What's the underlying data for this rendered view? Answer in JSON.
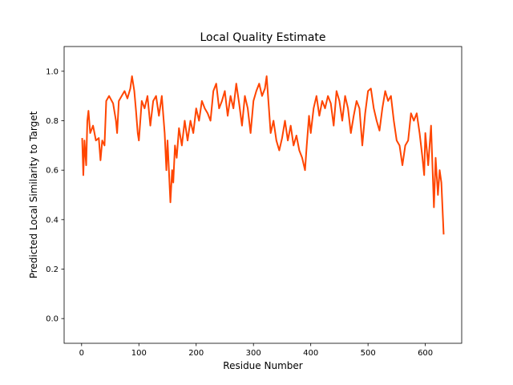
{
  "chart_data": {
    "type": "line",
    "title": "Local Quality Estimate",
    "x_label": "Residue Number",
    "y_label": "Predicted Local Similarity to Target",
    "color": "#ff4500",
    "xlim": [
      -30.5,
      663.5
    ],
    "ylim": [
      -0.1,
      1.1
    ],
    "xticks": [
      0,
      100,
      200,
      300,
      400,
      500,
      600
    ],
    "yticks": [
      {
        "value": 0,
        "label": "0.0"
      },
      0.2,
      0.4,
      0.6,
      0.8,
      {
        "value": 1,
        "label": "1.0"
      }
    ],
    "grid": false,
    "x": [
      1,
      3,
      5,
      8,
      10,
      12,
      15,
      20,
      25,
      30,
      33,
      36,
      40,
      43,
      48,
      55,
      60,
      62,
      65,
      70,
      75,
      80,
      85,
      88,
      92,
      95,
      98,
      100,
      105,
      110,
      115,
      120,
      125,
      130,
      135,
      140,
      145,
      148,
      150,
      153,
      155,
      158,
      160,
      163,
      166,
      170,
      175,
      180,
      185,
      190,
      195,
      200,
      205,
      210,
      215,
      220,
      225,
      230,
      235,
      240,
      245,
      250,
      255,
      260,
      265,
      270,
      275,
      280,
      285,
      290,
      295,
      300,
      305,
      310,
      315,
      320,
      323,
      327,
      330,
      335,
      340,
      345,
      350,
      355,
      360,
      365,
      370,
      375,
      380,
      385,
      390,
      393,
      397,
      400,
      405,
      410,
      415,
      420,
      425,
      430,
      435,
      440,
      445,
      450,
      455,
      460,
      465,
      470,
      475,
      480,
      485,
      490,
      495,
      500,
      505,
      510,
      515,
      520,
      525,
      530,
      535,
      540,
      545,
      550,
      555,
      560,
      565,
      570,
      575,
      580,
      585,
      590,
      595,
      598,
      600,
      605,
      610,
      615,
      618,
      622,
      625,
      628,
      632
    ],
    "values": [
      0.73,
      0.58,
      0.72,
      0.62,
      0.8,
      0.84,
      0.75,
      0.78,
      0.72,
      0.73,
      0.64,
      0.72,
      0.7,
      0.88,
      0.9,
      0.87,
      0.8,
      0.75,
      0.88,
      0.9,
      0.92,
      0.89,
      0.93,
      0.98,
      0.92,
      0.84,
      0.75,
      0.72,
      0.88,
      0.85,
      0.9,
      0.78,
      0.88,
      0.9,
      0.82,
      0.9,
      0.75,
      0.6,
      0.72,
      0.57,
      0.47,
      0.6,
      0.55,
      0.7,
      0.65,
      0.77,
      0.7,
      0.8,
      0.72,
      0.8,
      0.75,
      0.85,
      0.8,
      0.88,
      0.85,
      0.83,
      0.8,
      0.92,
      0.95,
      0.85,
      0.88,
      0.92,
      0.82,
      0.9,
      0.85,
      0.95,
      0.87,
      0.78,
      0.9,
      0.85,
      0.75,
      0.88,
      0.92,
      0.95,
      0.9,
      0.93,
      0.98,
      0.85,
      0.75,
      0.8,
      0.72,
      0.68,
      0.73,
      0.8,
      0.72,
      0.78,
      0.7,
      0.74,
      0.68,
      0.65,
      0.6,
      0.7,
      0.82,
      0.75,
      0.85,
      0.9,
      0.82,
      0.88,
      0.85,
      0.9,
      0.87,
      0.78,
      0.92,
      0.88,
      0.8,
      0.9,
      0.85,
      0.75,
      0.82,
      0.88,
      0.85,
      0.7,
      0.83,
      0.92,
      0.93,
      0.85,
      0.8,
      0.76,
      0.85,
      0.92,
      0.88,
      0.9,
      0.8,
      0.72,
      0.7,
      0.62,
      0.7,
      0.72,
      0.83,
      0.8,
      0.83,
      0.75,
      0.65,
      0.58,
      0.75,
      0.62,
      0.78,
      0.45,
      0.65,
      0.5,
      0.6,
      0.55,
      0.34
    ]
  }
}
